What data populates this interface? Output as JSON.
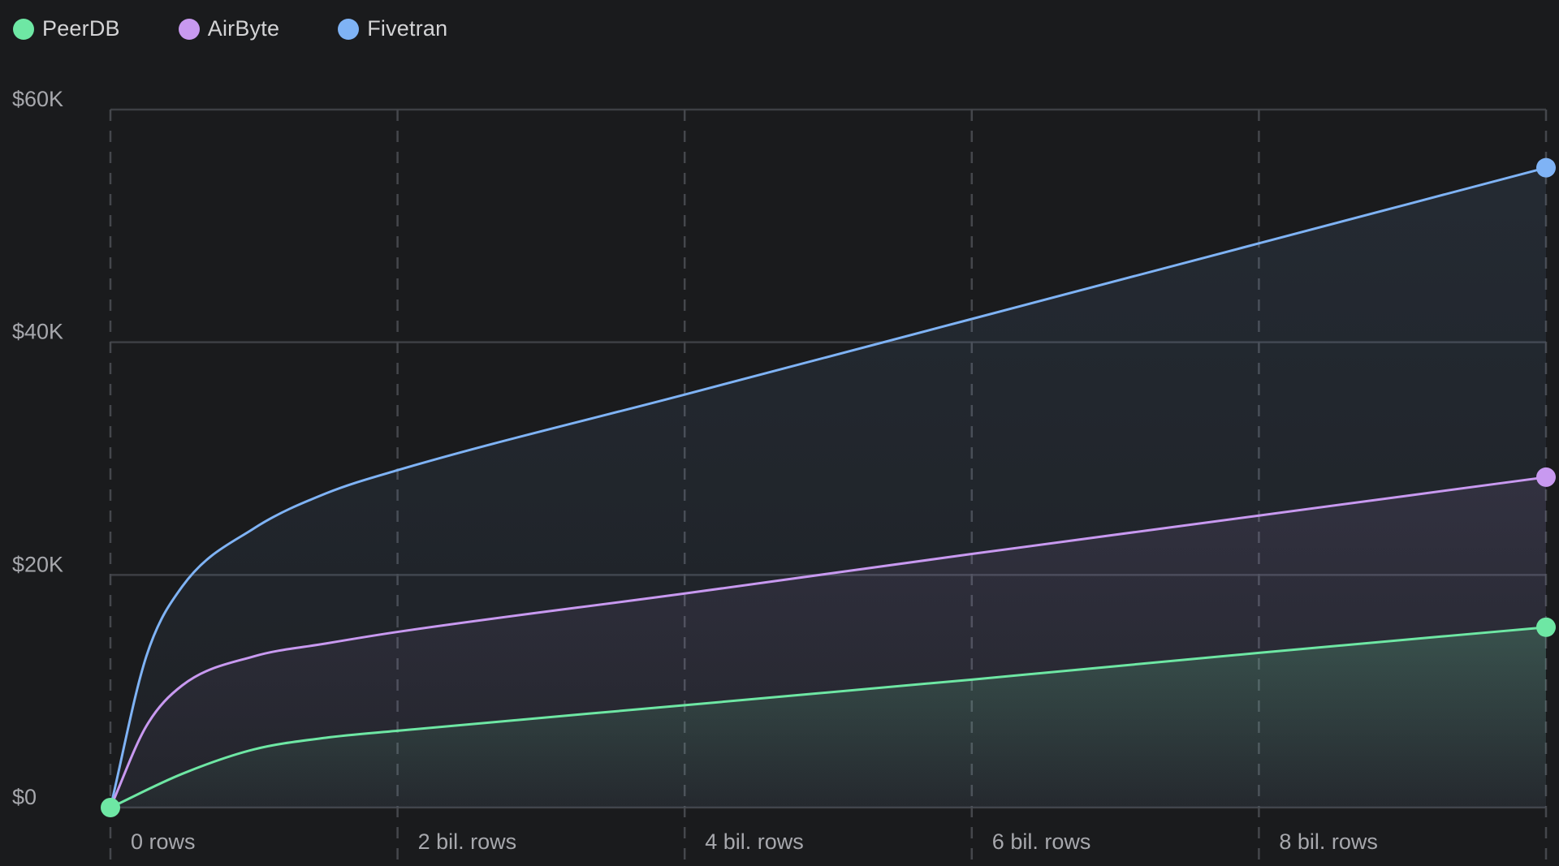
{
  "legend": {
    "peerdb": {
      "label": "PeerDB",
      "color": "#6ee7a4"
    },
    "airbyte": {
      "label": "AirByte",
      "color": "#c899f0"
    },
    "fivetran": {
      "label": "Fivetran",
      "color": "#7fb3f5"
    }
  },
  "chart_data": {
    "type": "area",
    "x_unit": "billion rows",
    "xlim": [
      0,
      10
    ],
    "ylim": [
      0,
      60000
    ],
    "x_ticks": [
      {
        "value": 0,
        "label": "0 rows"
      },
      {
        "value": 2,
        "label": "2 bil. rows"
      },
      {
        "value": 4,
        "label": "4 bil. rows"
      },
      {
        "value": 6,
        "label": "6 bil. rows"
      },
      {
        "value": 8,
        "label": "8 bil. rows"
      }
    ],
    "x_gridlines": [
      0,
      2,
      4,
      6,
      8,
      10
    ],
    "y_ticks": [
      {
        "value": 0,
        "label": "$0"
      },
      {
        "value": 20000,
        "label": "$20K"
      },
      {
        "value": 40000,
        "label": "$40K"
      },
      {
        "value": 60000,
        "label": "$60K"
      }
    ],
    "grid": true,
    "legend_position": "top-left",
    "series": [
      {
        "name": "Fivetran",
        "color": "#7fb3f5",
        "points": [
          [
            0,
            0
          ],
          [
            0.25,
            13000
          ],
          [
            0.5,
            19000
          ],
          [
            1.0,
            24000
          ],
          [
            1.5,
            27000
          ],
          [
            2,
            29000
          ],
          [
            4,
            35500
          ],
          [
            6,
            42000
          ],
          [
            8,
            48500
          ],
          [
            10,
            55000
          ]
        ],
        "end_marker": true
      },
      {
        "name": "AirByte",
        "color": "#c899f0",
        "points": [
          [
            0,
            0
          ],
          [
            0.25,
            7000
          ],
          [
            0.5,
            10500
          ],
          [
            1.0,
            13000
          ],
          [
            1.5,
            14100
          ],
          [
            2,
            15100
          ],
          [
            4,
            18400
          ],
          [
            6,
            21800
          ],
          [
            8,
            25100
          ],
          [
            10,
            28400
          ]
        ],
        "end_marker": true
      },
      {
        "name": "PeerDB",
        "color": "#6ee7a4",
        "points": [
          [
            0,
            0
          ],
          [
            0.5,
            2900
          ],
          [
            1.0,
            5000
          ],
          [
            1.5,
            6000
          ],
          [
            2,
            6600
          ],
          [
            4,
            8800
          ],
          [
            6,
            11000
          ],
          [
            8,
            13300
          ],
          [
            10,
            15500
          ]
        ],
        "start_marker": true,
        "end_marker": true
      }
    ]
  }
}
